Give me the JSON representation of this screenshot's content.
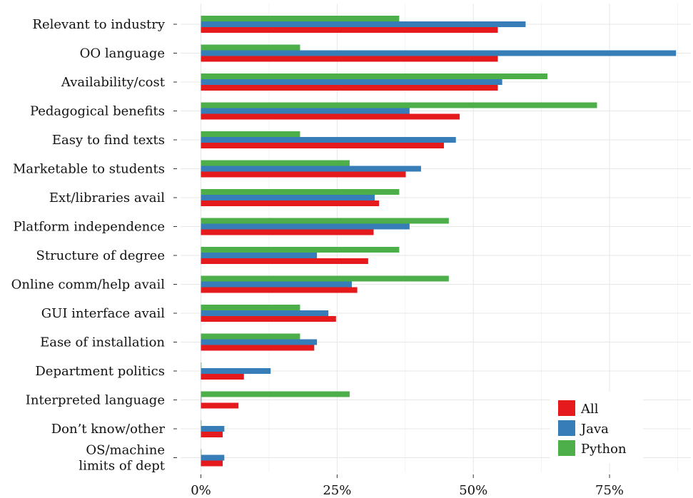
{
  "chart_data": {
    "type": "bar",
    "orientation": "horizontal",
    "title": "",
    "xlabel": "",
    "ylabel": "",
    "xlim": [
      0,
      90
    ],
    "x_ticks": [
      0,
      25,
      50,
      75
    ],
    "x_tick_labels": [
      "0%",
      "25%",
      "50%",
      "75%"
    ],
    "grid": true,
    "legend_position": "bottom-right",
    "categories": [
      "Relevant to industry",
      "OO language",
      "Availability/cost",
      "Pedagogical benefits",
      "Easy to find texts",
      "Marketable to students",
      "Ext/libraries avail",
      "Platform independence",
      "Structure of degree",
      "Online comm/help avail",
      "GUI interface avail",
      "Ease of installation",
      "Department politics",
      "Interpreted language",
      "Don’t know/other",
      "OS/machine limits of dept"
    ],
    "category_lines": [
      [
        "Relevant to industry"
      ],
      [
        "OO language"
      ],
      [
        "Availability/cost"
      ],
      [
        "Pedagogical benefits"
      ],
      [
        "Easy to find texts"
      ],
      [
        "Marketable to students"
      ],
      [
        "Ext/libraries avail"
      ],
      [
        "Platform independence"
      ],
      [
        "Structure of degree"
      ],
      [
        "Online comm/help avail"
      ],
      [
        "GUI interface avail"
      ],
      [
        "Ease of installation"
      ],
      [
        "Department politics"
      ],
      [
        "Interpreted language"
      ],
      [
        "Don’t know/other"
      ],
      [
        "OS/machine",
        "limits of dept"
      ]
    ],
    "series": [
      {
        "name": "All",
        "color": "#e41a1c",
        "values": [
          54.5,
          54.5,
          54.5,
          47.5,
          44.6,
          37.6,
          32.7,
          31.7,
          30.7,
          28.7,
          24.8,
          20.8,
          7.9,
          6.9,
          4.0,
          4.0
        ]
      },
      {
        "name": "Java",
        "color": "#377eb8",
        "values": [
          59.6,
          87.2,
          55.3,
          38.3,
          46.8,
          40.4,
          31.9,
          38.3,
          21.3,
          27.7,
          23.4,
          21.3,
          12.8,
          0,
          4.3,
          4.3
        ]
      },
      {
        "name": "Python",
        "color": "#4daf4a",
        "values": [
          36.4,
          18.2,
          63.6,
          72.7,
          18.2,
          27.3,
          36.4,
          45.5,
          36.4,
          45.5,
          18.2,
          18.2,
          0,
          27.3,
          0,
          0
        ]
      }
    ]
  }
}
